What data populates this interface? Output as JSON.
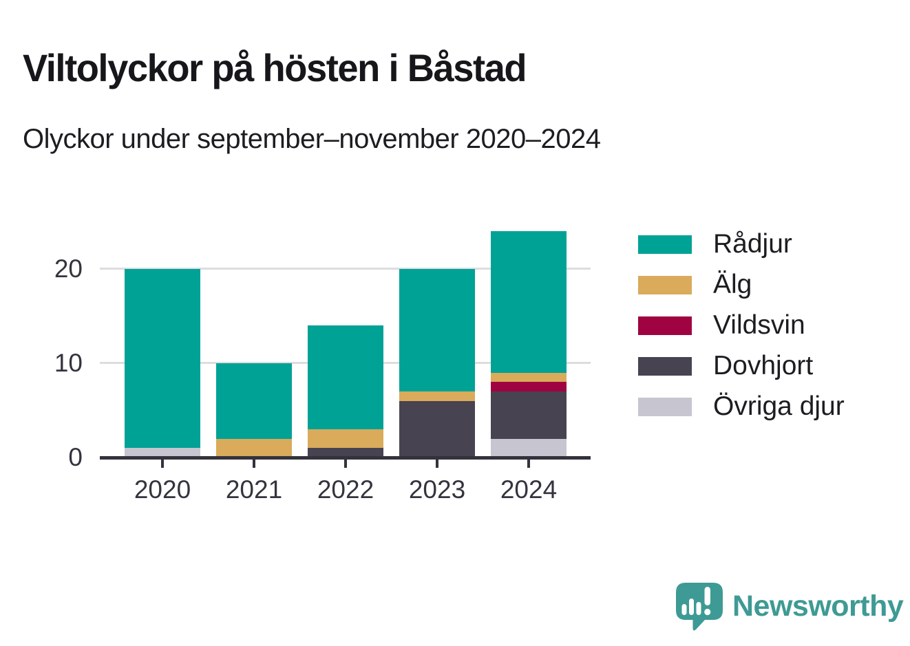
{
  "header": {
    "title": "Viltolyckor på hösten i Båstad",
    "subtitle": "Olyckor under september–november 2020–2024"
  },
  "chart_data": {
    "type": "bar",
    "stacked": true,
    "title": "Viltolyckor på hösten i Båstad",
    "subtitle": "Olyckor under september–november 2020–2024",
    "categories": [
      "2020",
      "2021",
      "2022",
      "2023",
      "2024"
    ],
    "series": [
      {
        "name": "Rådjur",
        "color": "#00a296",
        "values": [
          19,
          8,
          11,
          13,
          15
        ]
      },
      {
        "name": "Älg",
        "color": "#d9ab5b",
        "values": [
          0,
          2,
          2,
          1,
          1
        ]
      },
      {
        "name": "Vildsvin",
        "color": "#a00341",
        "values": [
          0,
          0,
          0,
          0,
          1
        ]
      },
      {
        "name": "Dovhjort",
        "color": "#474350",
        "values": [
          0,
          0,
          1,
          6,
          5
        ]
      },
      {
        "name": "Övriga djur",
        "color": "#c7c5cf",
        "values": [
          1,
          0,
          0,
          0,
          2
        ]
      }
    ],
    "stack_order_bottom_to_top": [
      "Övriga djur",
      "Dovhjort",
      "Vildsvin",
      "Älg",
      "Rådjur"
    ],
    "totals": [
      20,
      10,
      14,
      20,
      24
    ],
    "yticks": [
      0,
      10,
      20
    ],
    "ylim": [
      0,
      24
    ],
    "grid": "horizontal",
    "legend_position": "right",
    "xlabel": "",
    "ylabel": ""
  },
  "footer": {
    "brand": "Newsworthy",
    "logo_icon": "speech-bubble-bar-chart-exclamation"
  },
  "colors": {
    "axis": "#34323c",
    "grid": "#dddce0",
    "text": "#1d1c21",
    "brand_teal": "#3e9a94"
  }
}
